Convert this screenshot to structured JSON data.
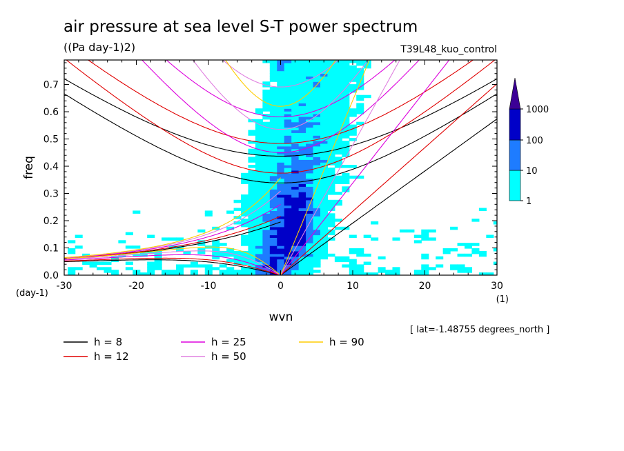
{
  "chart_data": {
    "type": "heatmap",
    "title": "air pressure at sea level S-T power spectrum",
    "units": "((Pa day-1)2)",
    "experiment": "T39L48_kuo_control",
    "xlabel": "wvn",
    "xunit": "(1)",
    "ylabel": "freq",
    "yunit": "(day-1)",
    "xlim": [
      -30,
      30
    ],
    "ylim": [
      0,
      0.79
    ],
    "xticks": [
      -30,
      -20,
      -10,
      0,
      10,
      20,
      30
    ],
    "yticks": [
      0.0,
      0.1,
      0.2,
      0.3,
      0.4,
      0.5,
      0.6,
      0.7
    ],
    "ytick_labels": [
      "0.0",
      "0.1",
      "0.2",
      "0.3",
      "0.4",
      "0.5",
      "0.6",
      "0.7"
    ],
    "note": "[ lat=-1.48755 degrees_north ]",
    "colorbar": {
      "levels": [
        "1",
        "10",
        "100",
        "1000"
      ],
      "colors": [
        "#00ffff",
        "#1e7cff",
        "#0000c8",
        "#3c0096"
      ]
    },
    "dispersion_curves": [
      {
        "label": "h =  8",
        "h": 8,
        "color": "#000000"
      },
      {
        "label": "h = 12",
        "h": 12,
        "color": "#e00000"
      },
      {
        "label": "h = 25",
        "h": 25,
        "color": "#dd00dd"
      },
      {
        "label": "h = 50",
        "h": 50,
        "color": "#e080e0"
      },
      {
        "label": "h = 90",
        "h": 90,
        "color": "#ffcc00"
      }
    ]
  }
}
